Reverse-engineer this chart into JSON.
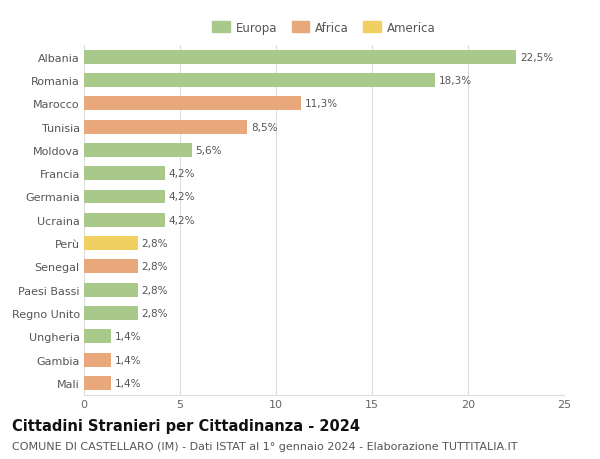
{
  "categories": [
    "Albania",
    "Romania",
    "Marocco",
    "Tunisia",
    "Moldova",
    "Francia",
    "Germania",
    "Ucraina",
    "Perù",
    "Senegal",
    "Paesi Bassi",
    "Regno Unito",
    "Ungheria",
    "Gambia",
    "Mali"
  ],
  "values": [
    22.5,
    18.3,
    11.3,
    8.5,
    5.6,
    4.2,
    4.2,
    4.2,
    2.8,
    2.8,
    2.8,
    2.8,
    1.4,
    1.4,
    1.4
  ],
  "continents": [
    "Europa",
    "Europa",
    "Africa",
    "Africa",
    "Europa",
    "Europa",
    "Europa",
    "Europa",
    "America",
    "Africa",
    "Europa",
    "Europa",
    "Europa",
    "Africa",
    "Africa"
  ],
  "continent_colors": {
    "Europa": "#a8c98a",
    "Africa": "#e8a87c",
    "America": "#f0d060"
  },
  "labels": [
    "22,5%",
    "18,3%",
    "11,3%",
    "8,5%",
    "5,6%",
    "4,2%",
    "4,2%",
    "4,2%",
    "2,8%",
    "2,8%",
    "2,8%",
    "2,8%",
    "1,4%",
    "1,4%",
    "1,4%"
  ],
  "xlim": [
    0,
    25
  ],
  "xticks": [
    0,
    5,
    10,
    15,
    20,
    25
  ],
  "title": "Cittadini Stranieri per Cittadinanza - 2024",
  "subtitle": "COMUNE DI CASTELLARO (IM) - Dati ISTAT al 1° gennaio 2024 - Elaborazione TUTTITALIA.IT",
  "legend_order": [
    "Europa",
    "Africa",
    "America"
  ],
  "background_color": "#ffffff",
  "grid_color": "#dddddd",
  "bar_height": 0.6,
  "title_fontsize": 10.5,
  "subtitle_fontsize": 8,
  "label_fontsize": 7.5,
  "tick_fontsize": 8,
  "legend_fontsize": 8.5
}
